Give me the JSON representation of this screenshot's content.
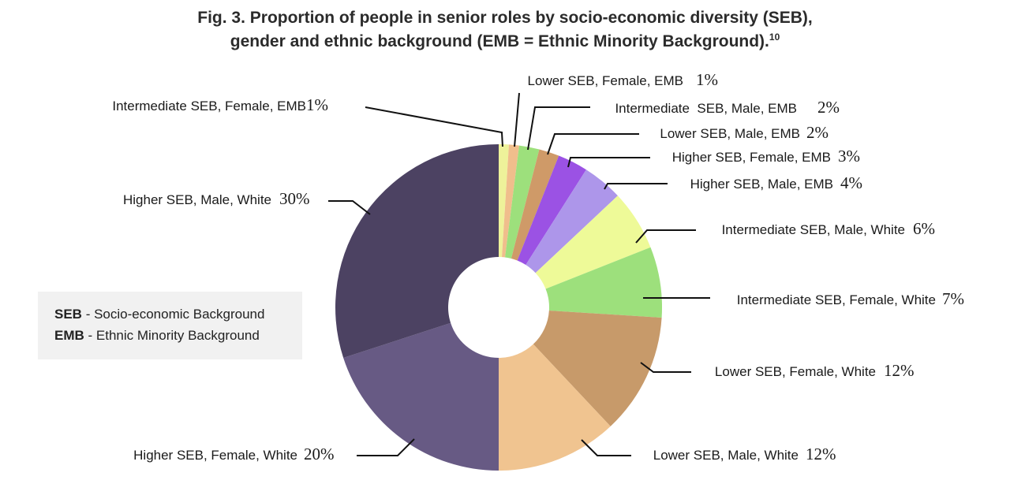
{
  "title": {
    "line1": "Fig. 3. Proportion of people in senior roles by socio-economic diversity (SEB),",
    "line2": "gender and ethnic background (EMB = Ethnic Minority Background).",
    "footnote": "10"
  },
  "legend": {
    "items": [
      {
        "abbr": "SEB",
        "text": " - Socio-economic Background"
      },
      {
        "abbr": "EMB",
        "text": " - Ethnic Minority Background"
      }
    ]
  },
  "chart_data": {
    "type": "pie",
    "donut": true,
    "start": "top",
    "direction": "clockwise",
    "slices": [
      {
        "label": "Intermediate SEB, Female, EMB",
        "value": 1,
        "value_label": "1%",
        "color": "#eef29a"
      },
      {
        "label": "Lower SEB, Female, EMB",
        "value": 1,
        "value_label": "1%",
        "color": "#f0be8c"
      },
      {
        "label": "Intermediate  SEB, Male, EMB",
        "value": 2,
        "value_label": "2%",
        "color": "#9de07c"
      },
      {
        "label": "Lower SEB, Male, EMB",
        "value": 2,
        "value_label": "2%",
        "color": "#cf9a68"
      },
      {
        "label": "Higher SEB, Female, EMB",
        "value": 3,
        "value_label": "3%",
        "color": "#9b52e4"
      },
      {
        "label": "Higher SEB, Male, EMB",
        "value": 4,
        "value_label": "4%",
        "color": "#ad96ea"
      },
      {
        "label": "Intermediate SEB, Male, White",
        "value": 6,
        "value_label": "6%",
        "color": "#eefa98"
      },
      {
        "label": "Intermediate SEB, Female, White",
        "value": 7,
        "value_label": "7%",
        "color": "#9de07c"
      },
      {
        "label": "Lower SEB, Female, White",
        "value": 12,
        "value_label": "12%",
        "color": "#c79a6a"
      },
      {
        "label": "Lower SEB, Male, White",
        "value": 12,
        "value_label": "12%",
        "color": "#f0c490"
      },
      {
        "label": "Higher SEB, Female, White",
        "value": 20,
        "value_label": "20%",
        "color": "#675a84"
      },
      {
        "label": "Higher SEB, Male, White",
        "value": 30,
        "value_label": "30%",
        "color": "#4c4262"
      }
    ]
  }
}
